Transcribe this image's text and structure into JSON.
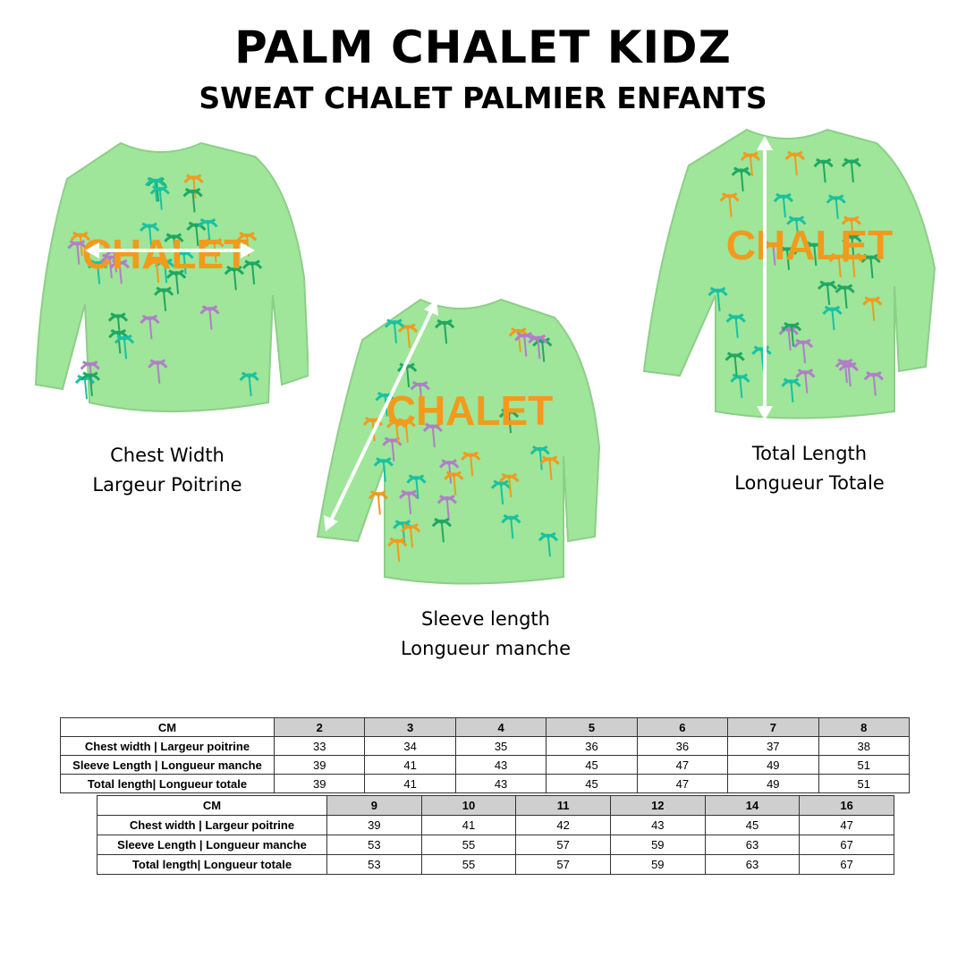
{
  "header": {
    "title": "PALM CHALET KIDZ",
    "subtitle": "SWEAT CHALET PALMIER ENFANTS"
  },
  "product": {
    "print_text": "CHALET",
    "body_color": "#9fe59a",
    "palm_colors": [
      "#1fa862",
      "#f29a1c",
      "#b07fc6",
      "#19c2a0"
    ],
    "arrow_color": "#ffffff"
  },
  "measurements": [
    {
      "line1": "Chest Width",
      "line2": "Largeur Poitrine"
    },
    {
      "line1": "Sleeve length",
      "line2": "Longueur manche"
    },
    {
      "line1": "Total Length",
      "line2": "Longueur Totale"
    }
  ],
  "size_tables": [
    {
      "unit": "CM",
      "sizes": [
        "2",
        "3",
        "4",
        "5",
        "6",
        "7",
        "8"
      ],
      "rows": [
        {
          "label": "Chest width | Largeur poitrine",
          "values": [
            "33",
            "34",
            "35",
            "36",
            "36",
            "37",
            "38"
          ]
        },
        {
          "label": "Sleeve Length | Longueur manche",
          "values": [
            "39",
            "41",
            "43",
            "45",
            "47",
            "49",
            "51"
          ]
        },
        {
          "label": "Total length| Longueur totale",
          "values": [
            "39",
            "41",
            "43",
            "45",
            "47",
            "49",
            "51"
          ]
        }
      ]
    },
    {
      "unit": "CM",
      "sizes": [
        "9",
        "10",
        "11",
        "12",
        "14",
        "16"
      ],
      "rows": [
        {
          "label": "Chest width | Largeur poitrine",
          "values": [
            "39",
            "41",
            "42",
            "43",
            "45",
            "47"
          ]
        },
        {
          "label": "Sleeve Length | Longueur manche",
          "values": [
            "53",
            "55",
            "57",
            "59",
            "63",
            "67"
          ]
        },
        {
          "label": "Total length| Longueur totale",
          "values": [
            "53",
            "55",
            "57",
            "59",
            "63",
            "67"
          ]
        }
      ]
    }
  ]
}
